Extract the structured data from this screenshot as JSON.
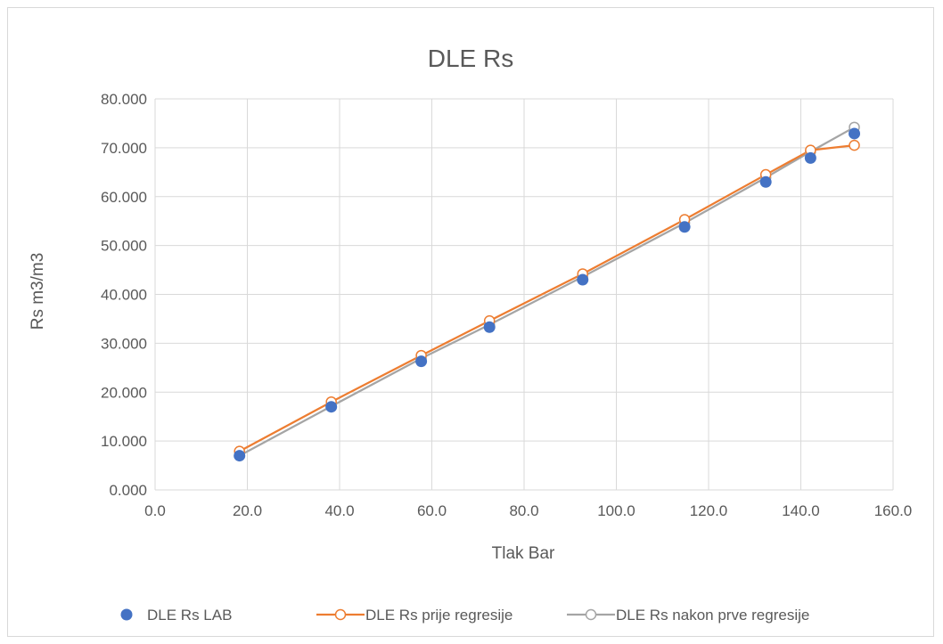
{
  "chart_data": {
    "type": "scatter",
    "title": "DLE Rs",
    "xlabel": "Tlak Bar",
    "ylabel": "Rs m3/m3",
    "xlim": [
      0,
      160
    ],
    "ylim": [
      0,
      80
    ],
    "xticks": [
      0,
      20,
      40,
      60,
      80,
      100,
      120,
      140,
      160
    ],
    "yticks": [
      0,
      10,
      20,
      30,
      40,
      50,
      60,
      70,
      80
    ],
    "xtick_labels": [
      "0.0",
      "20.0",
      "40.0",
      "60.0",
      "80.0",
      "100.0",
      "120.0",
      "140.0",
      "160.0"
    ],
    "ytick_labels": [
      "0.000",
      "10.000",
      "20.000",
      "30.000",
      "40.000",
      "50.000",
      "60.000",
      "70.000",
      "80.000"
    ],
    "grid": true,
    "legend_position": "bottom",
    "series": [
      {
        "name": "DLE Rs LAB",
        "style": "marker-filled",
        "color": "#4472c4",
        "x": [
          18.3,
          38.2,
          57.7,
          72.5,
          92.7,
          114.8,
          132.4,
          142.1,
          151.6
        ],
        "y": [
          7.0,
          17.0,
          26.3,
          33.3,
          43.0,
          53.8,
          63.0,
          67.9,
          72.9
        ]
      },
      {
        "name": "DLE Rs prije regresije",
        "style": "line-open-marker",
        "color": "#ed7d31",
        "x": [
          18.3,
          38.2,
          57.7,
          72.5,
          92.7,
          114.8,
          132.4,
          142.1,
          151.6
        ],
        "y": [
          7.9,
          18.0,
          27.5,
          34.6,
          44.2,
          55.3,
          64.5,
          69.5,
          70.5
        ]
      },
      {
        "name": "DLE Rs nakon prve regresije",
        "style": "line-open-marker",
        "color": "#a5a5a5",
        "x": [
          18.3,
          38.2,
          57.7,
          72.5,
          92.7,
          114.8,
          132.4,
          142.1,
          151.6
        ],
        "y": [
          7.0,
          17.1,
          26.9,
          33.8,
          43.6,
          54.6,
          63.9,
          69.2,
          74.2
        ]
      }
    ]
  }
}
